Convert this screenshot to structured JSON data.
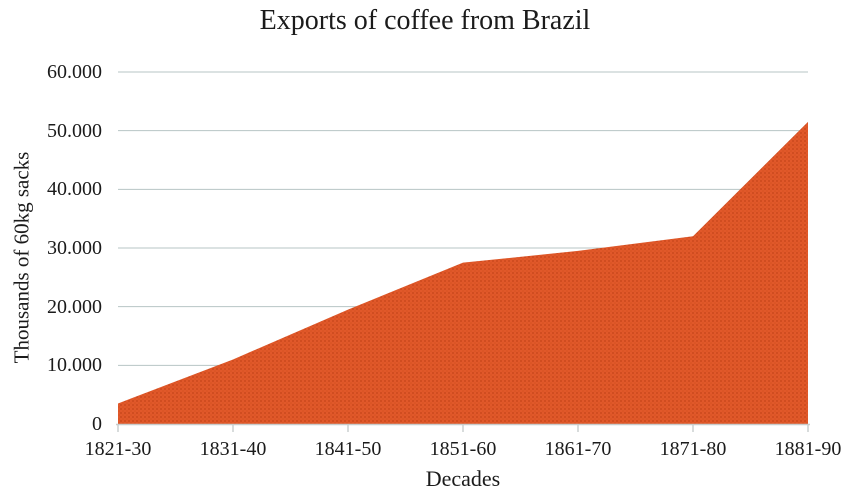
{
  "chart_data": {
    "type": "area",
    "title": "Exports of coffee from Brazil",
    "xlabel": "Decades",
    "ylabel": "Thousands of 60kg sacks",
    "categories": [
      "1821-30",
      "1831-40",
      "1841-50",
      "1851-60",
      "1861-70",
      "1871-80",
      "1881-90"
    ],
    "values": [
      3500,
      11000,
      19500,
      27500,
      29500,
      32000,
      51500
    ],
    "series_name": "Exports of coffee",
    "ylim": [
      0,
      60000
    ],
    "yticks": [
      {
        "value": 0,
        "label": "0"
      },
      {
        "value": 10000,
        "label": "10.000"
      },
      {
        "value": 20000,
        "label": "20.000"
      },
      {
        "value": 30000,
        "label": "30.000"
      },
      {
        "value": 40000,
        "label": "40.000"
      },
      {
        "value": 50000,
        "label": "50.000"
      },
      {
        "value": 60000,
        "label": "60.000"
      }
    ],
    "grid": "horizontal",
    "legend": "none",
    "colors": {
      "area_fill": "#E1582A",
      "area_dot_dark": "#CB4A1C",
      "area_dot_mid": "#D5521F",
      "gridline": "#B7C4C4",
      "axis": "#C8CCCC",
      "text": "#1B1B1B"
    }
  }
}
